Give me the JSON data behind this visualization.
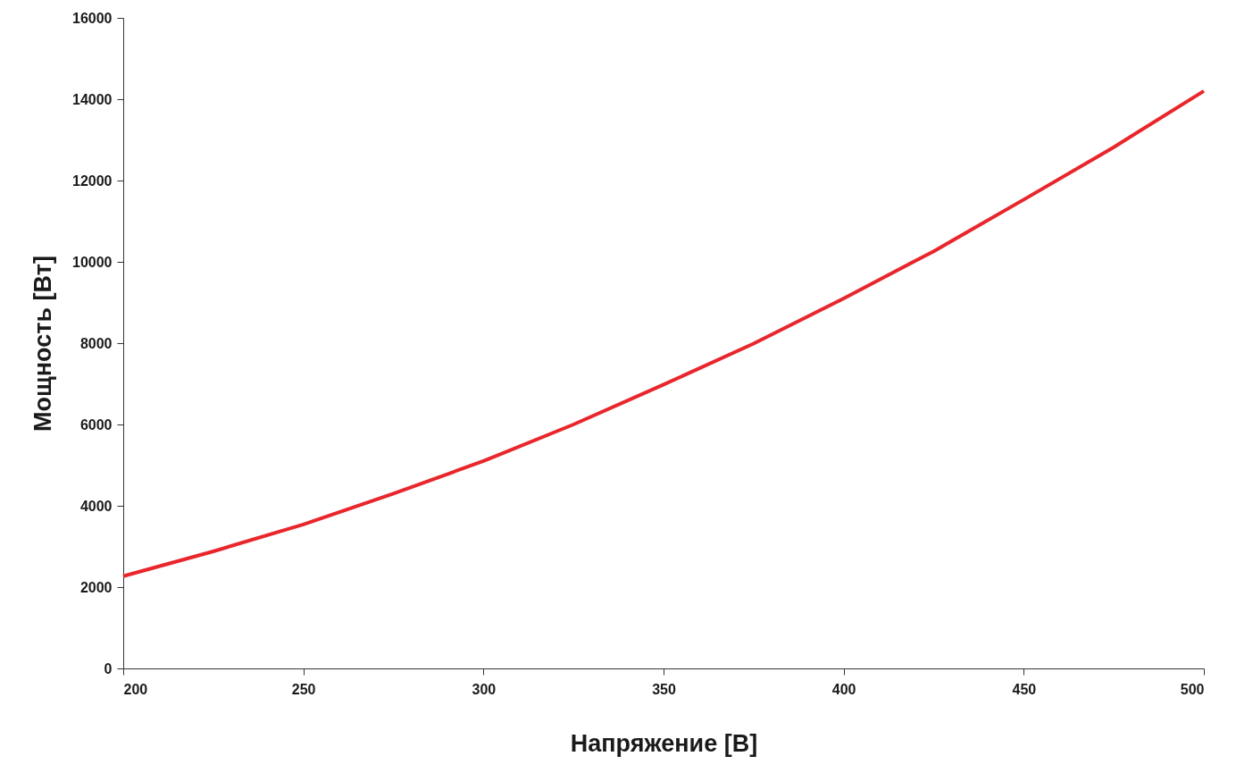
{
  "chart_data": {
    "type": "line",
    "xlabel": "Напряжение [В]",
    "ylabel": "Мощность [Вт]",
    "x": [
      200,
      225,
      250,
      275,
      300,
      325,
      350,
      375,
      400,
      425,
      450,
      475,
      500
    ],
    "series": [
      {
        "color": "#e8262b",
        "values": [
          2270,
          2880,
          3540,
          4300,
          5100,
          6000,
          6980,
          7990,
          9100,
          10260,
          11530,
          12820,
          14200
        ]
      }
    ],
    "xlim": [
      200,
      500
    ],
    "xticks": [
      200,
      250,
      300,
      350,
      400,
      450,
      500
    ],
    "ylim": [
      0,
      16000
    ],
    "yticks": [
      0,
      2000,
      4000,
      6000,
      8000,
      10000,
      12000,
      14000,
      16000
    ],
    "grid": false,
    "marker": "none",
    "line_style": "solid"
  }
}
